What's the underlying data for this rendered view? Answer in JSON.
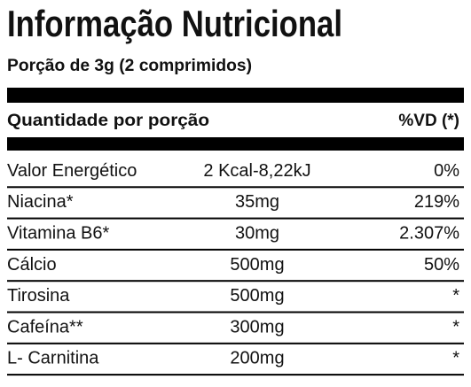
{
  "header": {
    "title": "Informação Nutricional",
    "subtitle": "Porção de 3g (2 comprimidos)"
  },
  "table": {
    "columns": {
      "left": "Quantidade por porção",
      "right": "%VD (*)"
    },
    "rows": [
      [
        "Valor Energético",
        "2 Kcal-8,22kJ",
        "0%"
      ],
      [
        "Niacina*",
        "35mg",
        "219%"
      ],
      [
        "Vitamina B6*",
        "30mg",
        "2.307%"
      ],
      [
        "Cálcio",
        "500mg",
        "50%"
      ],
      [
        "Tirosina",
        "500mg",
        "*"
      ],
      [
        "Cafeína**",
        "300mg",
        "*"
      ],
      [
        "L- Carnitina",
        "200mg",
        "*"
      ]
    ]
  }
}
